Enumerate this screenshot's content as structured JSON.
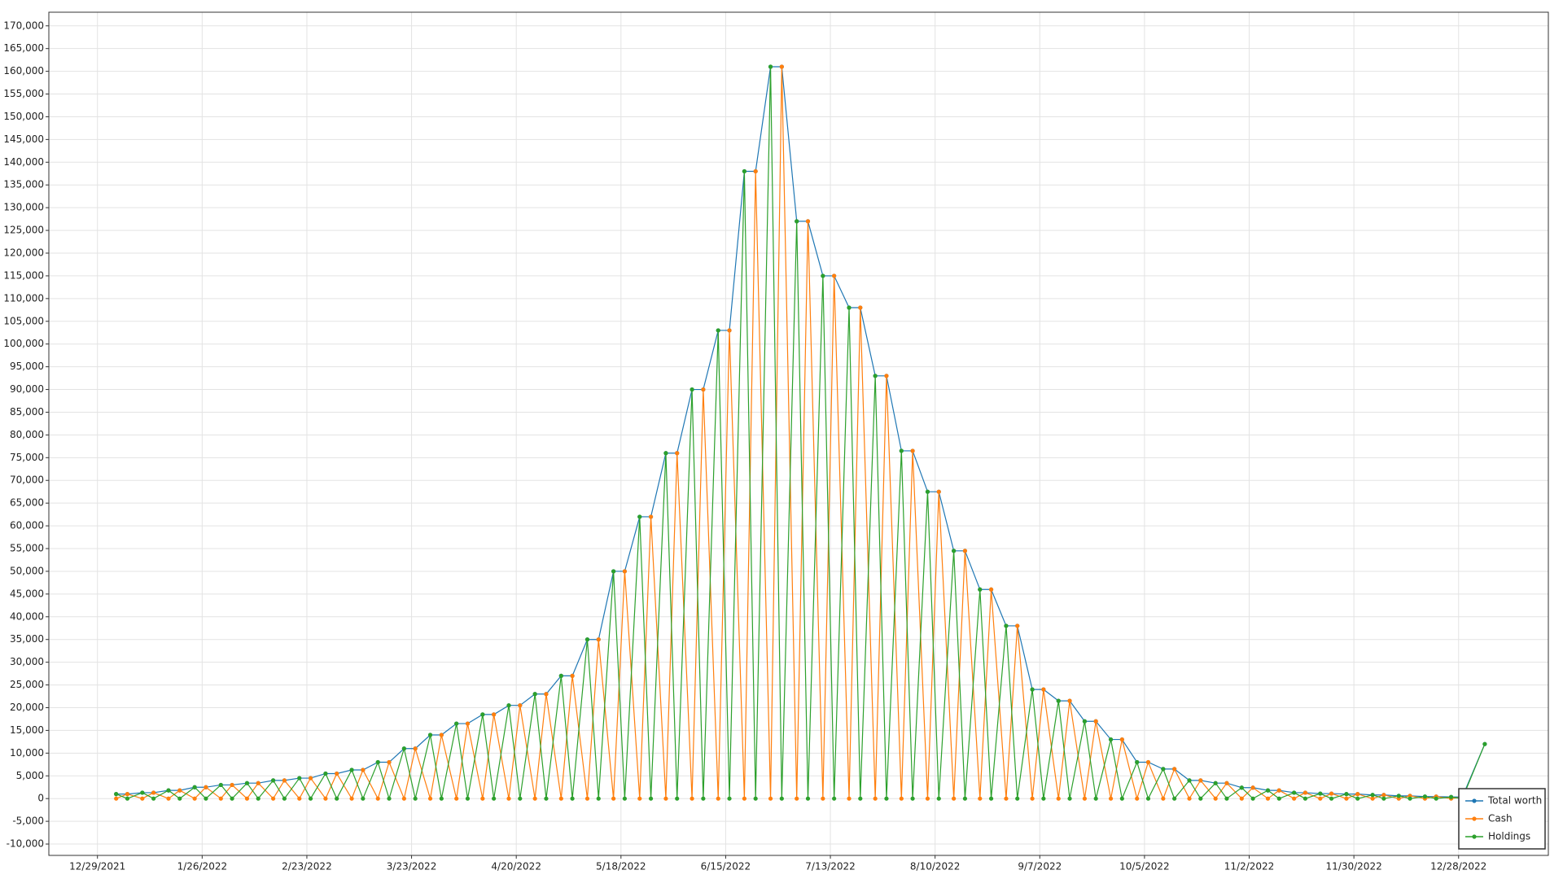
{
  "chart_data": {
    "type": "line",
    "x": [
      "2022-01-03",
      "2022-01-06",
      "2022-01-10",
      "2022-01-13",
      "2022-01-17",
      "2022-01-20",
      "2022-01-24",
      "2022-01-27",
      "2022-01-31",
      "2022-02-03",
      "2022-02-07",
      "2022-02-10",
      "2022-02-14",
      "2022-02-17",
      "2022-02-21",
      "2022-02-24",
      "2022-02-28",
      "2022-03-03",
      "2022-03-07",
      "2022-03-10",
      "2022-03-14",
      "2022-03-17",
      "2022-03-21",
      "2022-03-24",
      "2022-03-28",
      "2022-03-31",
      "2022-04-04",
      "2022-04-07",
      "2022-04-11",
      "2022-04-14",
      "2022-04-18",
      "2022-04-21",
      "2022-04-25",
      "2022-04-28",
      "2022-05-02",
      "2022-05-05",
      "2022-05-09",
      "2022-05-12",
      "2022-05-16",
      "2022-05-19",
      "2022-05-23",
      "2022-05-26",
      "2022-05-30",
      "2022-06-02",
      "2022-06-06",
      "2022-06-09",
      "2022-06-13",
      "2022-06-16",
      "2022-06-20",
      "2022-06-23",
      "2022-06-27",
      "2022-06-30",
      "2022-07-04",
      "2022-07-07",
      "2022-07-11",
      "2022-07-14",
      "2022-07-18",
      "2022-07-21",
      "2022-07-25",
      "2022-07-28",
      "2022-08-01",
      "2022-08-04",
      "2022-08-08",
      "2022-08-11",
      "2022-08-15",
      "2022-08-18",
      "2022-08-22",
      "2022-08-25",
      "2022-08-29",
      "2022-09-01",
      "2022-09-05",
      "2022-09-08",
      "2022-09-12",
      "2022-09-15",
      "2022-09-19",
      "2022-09-22",
      "2022-09-26",
      "2022-09-29",
      "2022-10-03",
      "2022-10-06",
      "2022-10-10",
      "2022-10-13",
      "2022-10-17",
      "2022-10-20",
      "2022-10-24",
      "2022-10-27",
      "2022-10-31",
      "2022-11-03",
      "2022-11-07",
      "2022-11-10",
      "2022-11-14",
      "2022-11-17",
      "2022-11-21",
      "2022-11-24",
      "2022-11-28",
      "2022-12-01",
      "2022-12-05",
      "2022-12-08",
      "2022-12-12",
      "2022-12-15",
      "2022-12-19",
      "2022-12-22",
      "2022-12-26",
      "2022-12-29",
      "2023-01-04"
    ],
    "series": [
      {
        "name": "Total worth",
        "color": "#1f77b4",
        "values": [
          1000,
          1000,
          1300,
          1300,
          1800,
          1800,
          2500,
          2500,
          3000,
          3000,
          3400,
          3400,
          4000,
          4000,
          4500,
          4500,
          5500,
          5500,
          6300,
          6300,
          8000,
          8000,
          11000,
          11000,
          14000,
          14000,
          16500,
          16500,
          18500,
          18500,
          20500,
          20500,
          23000,
          23000,
          27000,
          27000,
          35000,
          35000,
          50000,
          50000,
          62000,
          62000,
          76000,
          76000,
          90000,
          90000,
          103000,
          103000,
          138000,
          138000,
          161000,
          161000,
          127000,
          127000,
          115000,
          115000,
          108000,
          108000,
          93000,
          93000,
          76500,
          76500,
          67500,
          67500,
          54500,
          54500,
          46000,
          46000,
          38000,
          38000,
          24000,
          24000,
          21500,
          21500,
          17000,
          17000,
          13000,
          13000,
          8000,
          8000,
          6500,
          6500,
          4000,
          4000,
          3400,
          3400,
          2400,
          2400,
          1800,
          1800,
          1300,
          1300,
          1100,
          1100,
          1000,
          1000,
          800,
          800,
          600,
          600,
          450,
          450,
          350,
          350,
          12000
        ]
      },
      {
        "name": "Cash",
        "color": "#ff7f0e",
        "values": [
          0,
          1000,
          0,
          1300,
          0,
          1800,
          0,
          2500,
          0,
          3000,
          0,
          3400,
          0,
          4000,
          0,
          4500,
          0,
          5500,
          0,
          6300,
          0,
          8000,
          0,
          11000,
          0,
          14000,
          0,
          16500,
          0,
          18500,
          0,
          20500,
          0,
          23000,
          0,
          27000,
          0,
          35000,
          0,
          50000,
          0,
          62000,
          0,
          76000,
          0,
          90000,
          0,
          103000,
          0,
          138000,
          0,
          161000,
          0,
          127000,
          0,
          115000,
          0,
          108000,
          0,
          93000,
          0,
          76500,
          0,
          67500,
          0,
          54500,
          0,
          46000,
          0,
          38000,
          0,
          24000,
          0,
          21500,
          0,
          17000,
          0,
          13000,
          0,
          8000,
          0,
          6500,
          0,
          4000,
          0,
          3400,
          0,
          2400,
          0,
          1800,
          0,
          1300,
          0,
          1100,
          0,
          1000,
          0,
          800,
          0,
          600,
          0,
          450,
          0,
          350,
          0
        ]
      },
      {
        "name": "Holdings",
        "color": "#2ca02c",
        "values": [
          1000,
          0,
          1300,
          0,
          1800,
          0,
          2500,
          0,
          3000,
          0,
          3400,
          0,
          4000,
          0,
          4500,
          0,
          5500,
          0,
          6300,
          0,
          8000,
          0,
          11000,
          0,
          14000,
          0,
          16500,
          0,
          18500,
          0,
          20500,
          0,
          23000,
          0,
          27000,
          0,
          35000,
          0,
          50000,
          0,
          62000,
          0,
          76000,
          0,
          90000,
          0,
          103000,
          0,
          138000,
          0,
          161000,
          0,
          127000,
          0,
          115000,
          0,
          108000,
          0,
          93000,
          0,
          76500,
          0,
          67500,
          0,
          54500,
          0,
          46000,
          0,
          38000,
          0,
          24000,
          0,
          21500,
          0,
          17000,
          0,
          13000,
          0,
          8000,
          0,
          6500,
          0,
          4000,
          0,
          3400,
          0,
          2400,
          0,
          1800,
          0,
          1300,
          0,
          1100,
          0,
          1000,
          0,
          800,
          0,
          600,
          0,
          450,
          0,
          350,
          0,
          12000
        ]
      }
    ],
    "xlim": [
      "2021-12-16",
      "2023-01-21"
    ],
    "xticks": [
      {
        "value": "2021-12-29",
        "label": "12/29/2021"
      },
      {
        "value": "2022-01-26",
        "label": "1/26/2022"
      },
      {
        "value": "2022-02-23",
        "label": "2/23/2022"
      },
      {
        "value": "2022-03-23",
        "label": "3/23/2022"
      },
      {
        "value": "2022-04-20",
        "label": "4/20/2022"
      },
      {
        "value": "2022-05-18",
        "label": "5/18/2022"
      },
      {
        "value": "2022-06-15",
        "label": "6/15/2022"
      },
      {
        "value": "2022-07-13",
        "label": "7/13/2022"
      },
      {
        "value": "2022-08-10",
        "label": "8/10/2022"
      },
      {
        "value": "2022-09-07",
        "label": "9/7/2022"
      },
      {
        "value": "2022-10-05",
        "label": "10/5/2022"
      },
      {
        "value": "2022-11-02",
        "label": "11/2/2022"
      },
      {
        "value": "2022-11-30",
        "label": "11/30/2022"
      },
      {
        "value": "2022-12-28",
        "label": "12/28/2022"
      }
    ],
    "ylim": [
      -12500,
      173000
    ],
    "yticks": [
      {
        "value": -10000,
        "label": "-10,000"
      },
      {
        "value": -5000,
        "label": "-5,000"
      },
      0,
      {
        "value": 5000,
        "label": "5,000"
      },
      {
        "value": 10000,
        "label": "10,000"
      },
      {
        "value": 15000,
        "label": "15,000"
      },
      {
        "value": 20000,
        "label": "20,000"
      },
      {
        "value": 25000,
        "label": "25,000"
      },
      {
        "value": 30000,
        "label": "30,000"
      },
      {
        "value": 35000,
        "label": "35,000"
      },
      {
        "value": 40000,
        "label": "40,000"
      },
      {
        "value": 45000,
        "label": "45,000"
      },
      {
        "value": 50000,
        "label": "50,000"
      },
      {
        "value": 55000,
        "label": "55,000"
      },
      {
        "value": 60000,
        "label": "60,000"
      },
      {
        "value": 65000,
        "label": "65,000"
      },
      {
        "value": 70000,
        "label": "70,000"
      },
      {
        "value": 75000,
        "label": "75,000"
      },
      {
        "value": 80000,
        "label": "80,000"
      },
      {
        "value": 85000,
        "label": "85,000"
      },
      {
        "value": 90000,
        "label": "90,000"
      },
      {
        "value": 95000,
        "label": "95,000"
      },
      {
        "value": 100000,
        "label": "100,000"
      },
      {
        "value": 105000,
        "label": "105,000"
      },
      {
        "value": 110000,
        "label": "110,000"
      },
      {
        "value": 115000,
        "label": "115,000"
      },
      {
        "value": 120000,
        "label": "120,000"
      },
      {
        "value": 125000,
        "label": "125,000"
      },
      {
        "value": 130000,
        "label": "130,000"
      },
      {
        "value": 135000,
        "label": "135,000"
      },
      {
        "value": 140000,
        "label": "140,000"
      },
      {
        "value": 145000,
        "label": "145,000"
      },
      {
        "value": 150000,
        "label": "150,000"
      },
      {
        "value": 155000,
        "label": "155,000"
      },
      {
        "value": 160000,
        "label": "160,000"
      },
      {
        "value": 165000,
        "label": "165,000"
      },
      {
        "value": 170000,
        "label": "170,000"
      }
    ],
    "grid": true,
    "legend": "bottom-right"
  }
}
